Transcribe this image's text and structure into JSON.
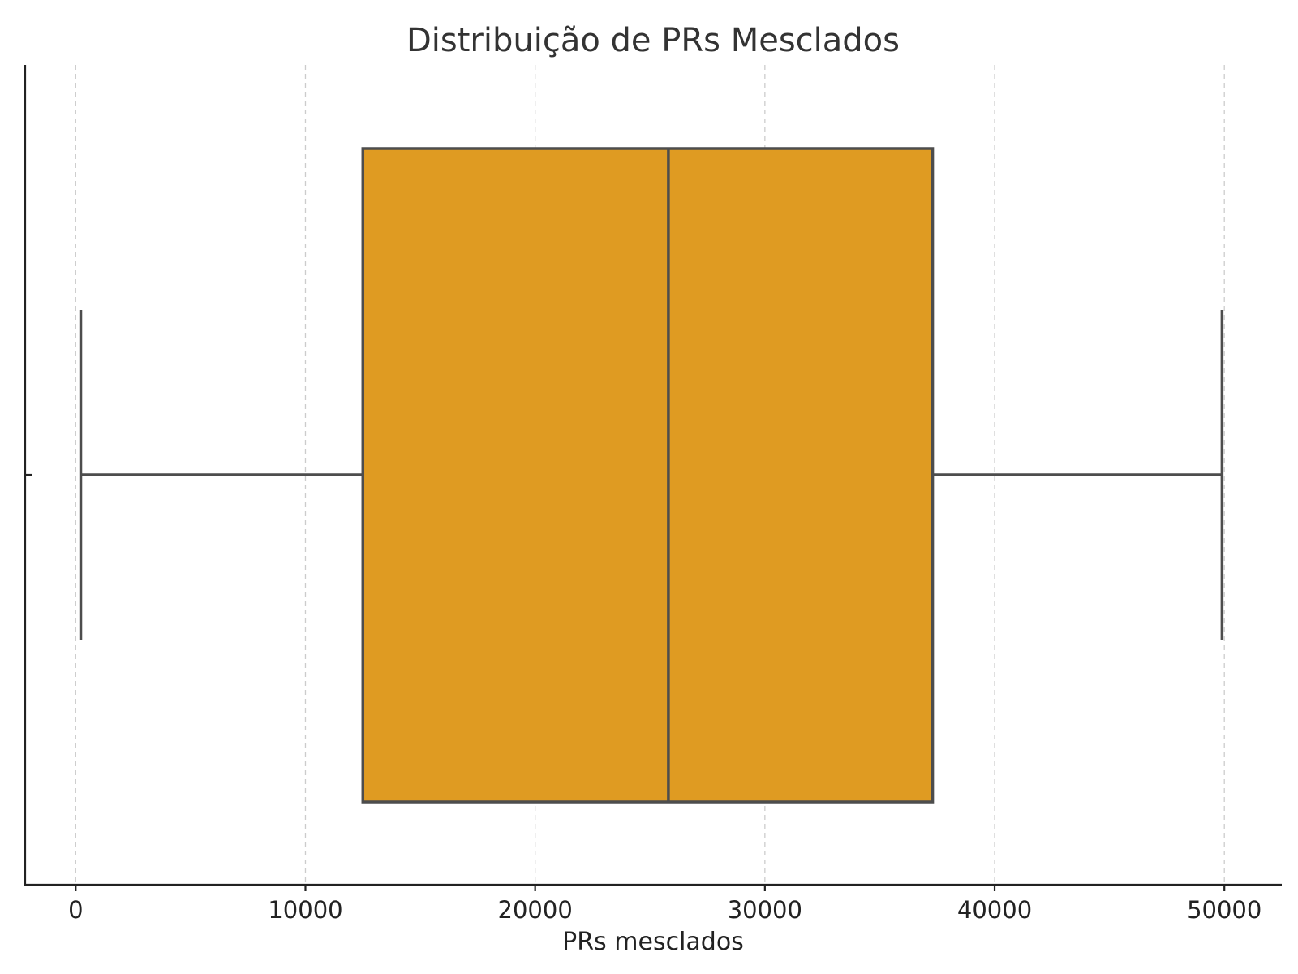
{
  "chart_data": {
    "type": "box",
    "title": "Distribuição de PRs Mesclados",
    "xlabel": "PRs mesclados",
    "ylabel": "",
    "xlim": [
      -2200,
      52500
    ],
    "xticks": [
      0,
      10000,
      20000,
      30000,
      40000,
      50000
    ],
    "xtick_labels": [
      "0",
      "10000",
      "20000",
      "30000",
      "40000",
      "50000"
    ],
    "grid": "x",
    "color": "#df9b22",
    "box": {
      "whisker_low": 220,
      "q1": 12500,
      "median": 25800,
      "q3": 37300,
      "whisker_high": 49900
    }
  }
}
